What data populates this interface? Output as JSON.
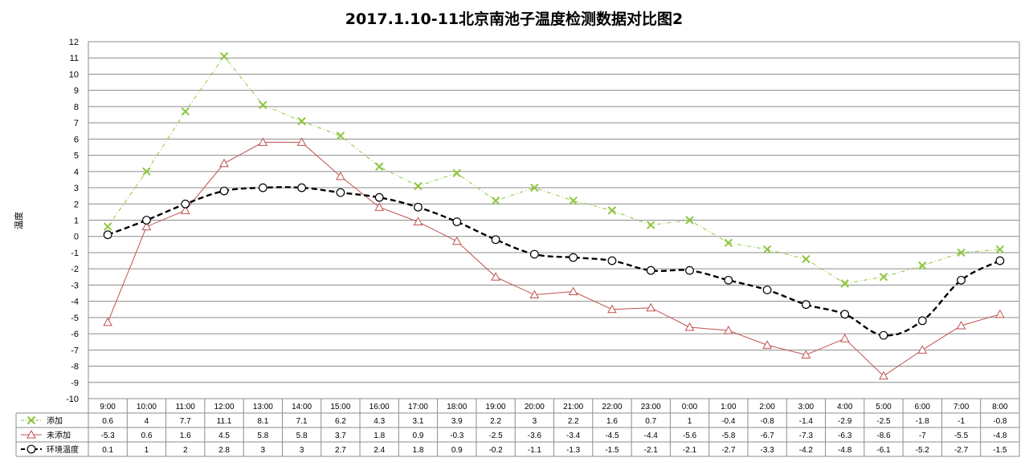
{
  "chart_data": {
    "type": "line",
    "title": "2017.1.10-11北京南池子温度检测数据对比图2",
    "ylabel": "温度",
    "ylim": [
      -10,
      12
    ],
    "yticks": [
      "-10",
      "-9",
      "-8",
      "-7",
      "-6",
      "-5",
      "-4",
      "-3",
      "-2",
      "-1",
      "0",
      "1",
      "2",
      "3",
      "4",
      "5",
      "6",
      "7",
      "8",
      "9",
      "10",
      "11",
      "12"
    ],
    "grid": true,
    "legend_position": "bottom data table",
    "categories": [
      "9:00",
      "10:00",
      "11:00",
      "12:00",
      "13:00",
      "14:00",
      "15:00",
      "16:00",
      "17:00",
      "18:00",
      "19:00",
      "20:00",
      "21:00",
      "22:00",
      "23:00",
      "0:00",
      "1:00",
      "2:00",
      "3:00",
      "4:00",
      "5:00",
      "6:00",
      "7:00",
      "8:00"
    ],
    "series": [
      {
        "name": "添加",
        "color": "#8dc63f",
        "marker": "x",
        "values": [
          0.6,
          4,
          7.7,
          11.1,
          8.1,
          7.1,
          6.2,
          4.3,
          3.1,
          3.9,
          2.2,
          3,
          2.2,
          1.6,
          0.7,
          1,
          -0.4,
          -0.8,
          -1.4,
          -2.9,
          -2.5,
          -1.8,
          -1,
          -0.8
        ],
        "labels": [
          "0.6",
          "4",
          "7.7",
          "11.1",
          "8.1",
          "7.1",
          "6.2",
          "4.3",
          "3.1",
          "3.9",
          "2.2",
          "3",
          "2.2",
          "1.6",
          "0.7",
          "1",
          "-0.4",
          "-0.8",
          "-1.4",
          "-2.9",
          "-2.5",
          "-1.8",
          "-1",
          "-0.8"
        ]
      },
      {
        "name": "未添加",
        "color": "#c0504d",
        "marker": "triangle",
        "values": [
          -5.3,
          0.6,
          1.6,
          4.5,
          5.8,
          5.8,
          3.7,
          1.8,
          0.9,
          -0.3,
          -2.5,
          -3.6,
          -3.4,
          -4.5,
          -4.4,
          -5.6,
          -5.8,
          -6.7,
          -7.3,
          -6.3,
          -8.6,
          -7,
          -5.5,
          -4.8
        ],
        "labels": [
          "-5.3",
          "0.6",
          "1.6",
          "4.5",
          "5.8",
          "5.8",
          "3.7",
          "1.8",
          "0.9",
          "-0.3",
          "-2.5",
          "-3.6",
          "-3.4",
          "-4.5",
          "-4.4",
          "-5.6",
          "-5.8",
          "-6.7",
          "-7.3",
          "-6.3",
          "-8.6",
          "-7",
          "-5.5",
          "-4.8"
        ]
      },
      {
        "name": "环境温度",
        "color": "#000000",
        "marker": "circle",
        "values": [
          0.1,
          1,
          2,
          2.8,
          3,
          3,
          2.7,
          2.4,
          1.8,
          0.9,
          -0.2,
          -1.1,
          -1.3,
          -1.5,
          -2.1,
          -2.1,
          -2.7,
          -3.3,
          -4.2,
          -4.8,
          -6.1,
          -5.2,
          -2.7,
          -1.5
        ],
        "labels": [
          "0.1",
          "1",
          "2",
          "2.8",
          "3",
          "3",
          "2.7",
          "2.4",
          "1.8",
          "0.9",
          "-0.2",
          "-1.1",
          "-1.3",
          "-1.5",
          "-2.1",
          "-2.1",
          "-2.7",
          "-3.3",
          "-4.2",
          "-4.8",
          "-6.1",
          "-5.2",
          "-2.7",
          "-1.5"
        ]
      }
    ]
  }
}
